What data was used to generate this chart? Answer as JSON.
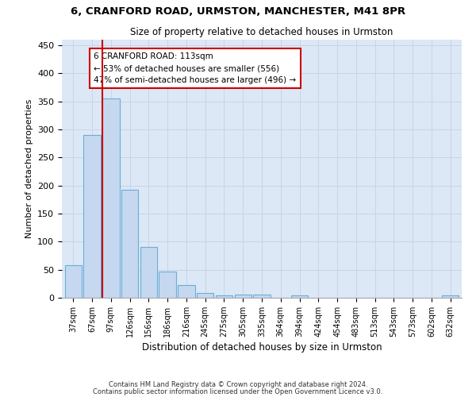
{
  "title1": "6, CRANFORD ROAD, URMSTON, MANCHESTER, M41 8PR",
  "title2": "Size of property relative to detached houses in Urmston",
  "xlabel": "Distribution of detached houses by size in Urmston",
  "ylabel": "Number of detached properties",
  "categories": [
    "37sqm",
    "67sqm",
    "97sqm",
    "126sqm",
    "156sqm",
    "186sqm",
    "216sqm",
    "245sqm",
    "275sqm",
    "305sqm",
    "335sqm",
    "364sqm",
    "394sqm",
    "424sqm",
    "454sqm",
    "483sqm",
    "513sqm",
    "543sqm",
    "573sqm",
    "602sqm",
    "632sqm"
  ],
  "values": [
    58,
    290,
    355,
    193,
    91,
    47,
    22,
    9,
    4,
    5,
    5,
    0,
    4,
    0,
    0,
    0,
    0,
    0,
    0,
    0,
    4
  ],
  "bar_color": "#c5d8f0",
  "bar_edgecolor": "#6aaed6",
  "vline_x": 2.0,
  "vline_color": "#cc0000",
  "annotation_line1": "6 CRANFORD ROAD: 113sqm",
  "annotation_line2": "← 53% of detached houses are smaller (556)",
  "annotation_line3": "47% of semi-detached houses are larger (496) →",
  "annotation_box_color": "#cc0000",
  "annotation_bg": "#ffffff",
  "ylim": [
    0,
    460
  ],
  "yticks": [
    0,
    50,
    100,
    150,
    200,
    250,
    300,
    350,
    400,
    450
  ],
  "grid_color": "#c8d4e8",
  "background_color": "#dce8f5",
  "footer_line1": "Contains HM Land Registry data © Crown copyright and database right 2024.",
  "footer_line2": "Contains public sector information licensed under the Open Government Licence v3.0."
}
